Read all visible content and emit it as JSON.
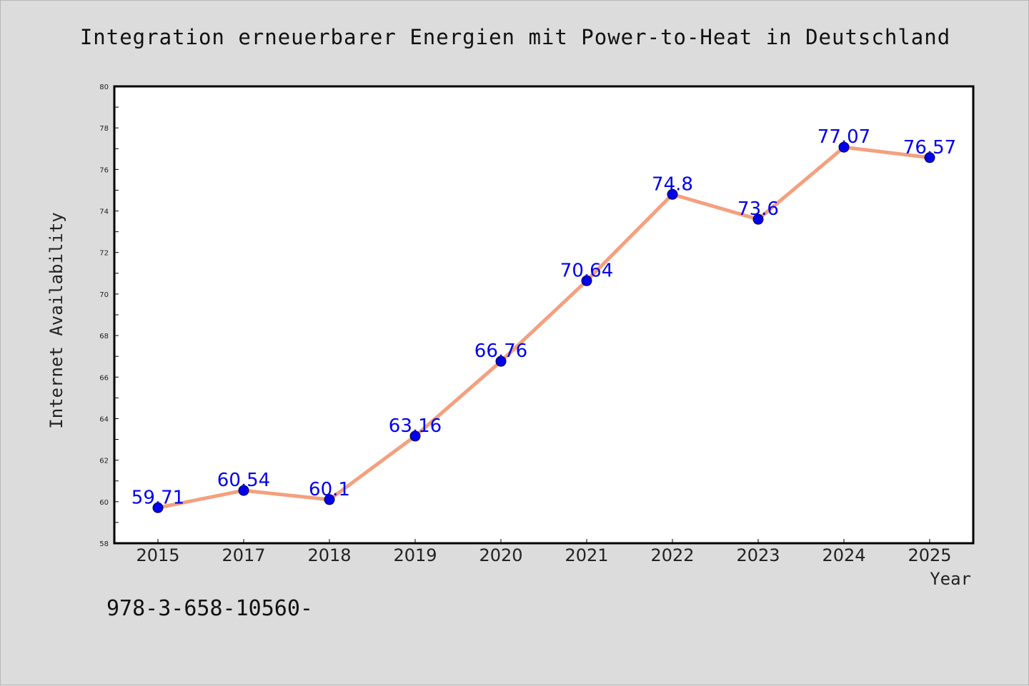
{
  "chart_data": {
    "type": "line",
    "title": "Integration erneuerbarer Energien mit Power-to-Heat in Deutschland",
    "xlabel": "Year",
    "ylabel": "Internet Availability",
    "categories": [
      "2015",
      "2017",
      "2018",
      "2019",
      "2020",
      "2021",
      "2022",
      "2023",
      "2024",
      "2025"
    ],
    "series": [
      {
        "values": [
          59.71,
          60.54,
          60.1,
          63.16,
          66.76,
          70.64,
          74.8,
          73.6,
          77.07,
          76.57
        ],
        "labels": [
          "59.71",
          "60.54",
          "60.1",
          "63.16",
          "66.76",
          "70.64",
          "74.8",
          "73.6",
          "77.07",
          "76.57"
        ],
        "line_color": "#f4a07e",
        "marker_color": "#0000ee"
      }
    ],
    "ylim": [
      58,
      80
    ],
    "yticks": [
      "58",
      "60",
      "62",
      "64",
      "66",
      "68",
      "70",
      "72",
      "74",
      "76",
      "78",
      "80"
    ],
    "grid": false,
    "legend": "none"
  },
  "footnote": "978-3-658-10560-",
  "colors": {
    "background": "#dcdcdc",
    "plot_background": "#ffffff",
    "axis": "#000000"
  }
}
